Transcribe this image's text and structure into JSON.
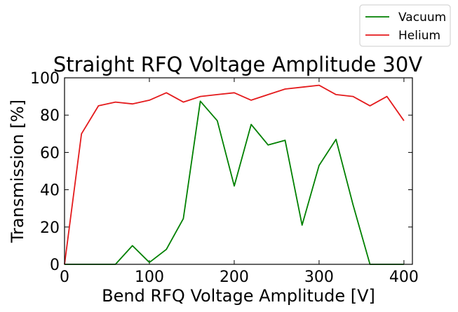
{
  "chart_data": {
    "type": "line",
    "title": "Straight RFQ Voltage Amplitude 30V",
    "xlabel": "Bend RFQ Voltage Amplitude [V]",
    "ylabel": "Transmission [%]",
    "xlim": [
      0,
      410
    ],
    "ylim": [
      0,
      100
    ],
    "xticks": [
      0,
      100,
      200,
      300,
      400
    ],
    "yticks": [
      0,
      20,
      40,
      60,
      80,
      100
    ],
    "grid": false,
    "legend_position": "top-right",
    "x": [
      0,
      20,
      40,
      60,
      80,
      100,
      120,
      140,
      160,
      180,
      200,
      220,
      240,
      260,
      280,
      300,
      320,
      340,
      360,
      380,
      400
    ],
    "series": [
      {
        "name": "Vacuum",
        "color": "#008000",
        "values": [
          0,
          0,
          0,
          0,
          10,
          1,
          8,
          24.5,
          87.5,
          77,
          42,
          75,
          64,
          66.5,
          21,
          53,
          67,
          32,
          0,
          0,
          0
        ]
      },
      {
        "name": "Helium",
        "color": "#e41a1c",
        "values": [
          0,
          70,
          85,
          87,
          86,
          88,
          92,
          87,
          90,
          91,
          92,
          88,
          91,
          94,
          95,
          96,
          91,
          90,
          85,
          90,
          77
        ]
      }
    ]
  }
}
